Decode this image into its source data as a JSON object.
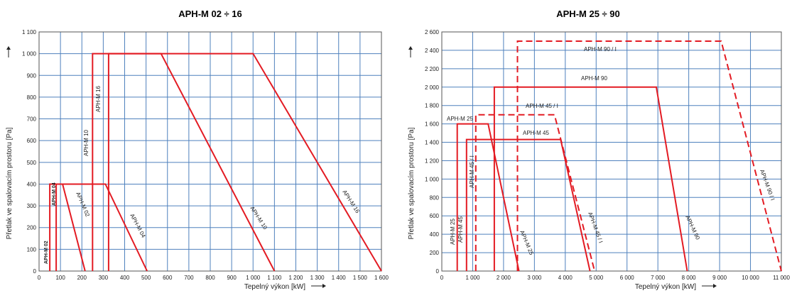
{
  "chart_data": [
    {
      "type": "line",
      "title": "APH-M 02 ÷ 16",
      "xlabel": "Tepelný výkon [kW]",
      "ylabel": "Přetlak ve spalovacím prostoru [Pa]",
      "xlim": [
        0,
        1600
      ],
      "ylim": [
        0,
        1100
      ],
      "x_ticks": [
        "0",
        "100",
        "200",
        "300",
        "400",
        "500",
        "600",
        "700",
        "800",
        "900",
        "1 000",
        "1 100",
        "1 200",
        "1 300",
        "1 400",
        "1 500",
        "1 600"
      ],
      "y_ticks": [
        "0",
        "100",
        "200",
        "300",
        "400",
        "500",
        "600",
        "700",
        "800",
        "900",
        "1 000",
        "1 100"
      ],
      "grid": true,
      "series": [
        {
          "name": "APH-M 02",
          "style": "solid",
          "points": [
            [
              50,
              0
            ],
            [
              50,
              400
            ],
            [
              110,
              400
            ],
            [
              215,
              0
            ]
          ]
        },
        {
          "name": "APH-M 04",
          "style": "solid",
          "points": [
            [
              80,
              0
            ],
            [
              80,
              400
            ],
            [
              310,
              400
            ],
            [
              505,
              0
            ]
          ]
        },
        {
          "name": "APH-M 10",
          "style": "solid",
          "points": [
            [
              250,
              0
            ],
            [
              250,
              1000
            ],
            [
              570,
              1000
            ],
            [
              1100,
              0
            ]
          ]
        },
        {
          "name": "APH-M 16",
          "style": "solid",
          "points": [
            [
              325,
              0
            ],
            [
              325,
              1000
            ],
            [
              1000,
              1000
            ],
            [
              1600,
              0
            ]
          ]
        }
      ]
    },
    {
      "type": "line",
      "title": "APH-M 25 ÷ 90",
      "xlabel": "Tepelný výkon [kW]",
      "ylabel": "Přetlak ve spalovacím prostoru [Pa]",
      "xlim": [
        0,
        11000
      ],
      "ylim": [
        0,
        2600
      ],
      "x_ticks": [
        "0",
        "1 000",
        "2 000",
        "3 000",
        "4 000",
        "5 000",
        "6 000",
        "7 000",
        "8 000",
        "9 000",
        "10 000",
        "11 000"
      ],
      "y_ticks": [
        "0",
        "200",
        "400",
        "600",
        "800",
        "1 000",
        "1 200",
        "1 400",
        "1 600",
        "1 800",
        "2 000",
        "2 200",
        "2 400",
        "2 600"
      ],
      "grid": true,
      "series": [
        {
          "name": "APH-M 25",
          "style": "solid",
          "points": [
            [
              500,
              0
            ],
            [
              500,
              1600
            ],
            [
              1500,
              1600
            ],
            [
              2500,
              0
            ]
          ]
        },
        {
          "name": "APH-M 45",
          "style": "solid",
          "points": [
            [
              800,
              0
            ],
            [
              800,
              1430
            ],
            [
              3850,
              1430
            ],
            [
              4800,
              0
            ]
          ]
        },
        {
          "name": "APH-M 45 / I",
          "style": "dashed",
          "points": [
            [
              1100,
              0
            ],
            [
              1100,
              1700
            ],
            [
              3650,
              1700
            ],
            [
              4950,
              0
            ]
          ]
        },
        {
          "name": "APH-M 90",
          "style": "solid",
          "points": [
            [
              1700,
              0
            ],
            [
              1700,
              2000
            ],
            [
              6950,
              2000
            ],
            [
              7950,
              0
            ]
          ]
        },
        {
          "name": "APH-M 90 / I",
          "style": "dashed",
          "points": [
            [
              2450,
              0
            ],
            [
              2450,
              2500
            ],
            [
              9050,
              2500
            ],
            [
              11000,
              0
            ]
          ]
        }
      ]
    }
  ]
}
